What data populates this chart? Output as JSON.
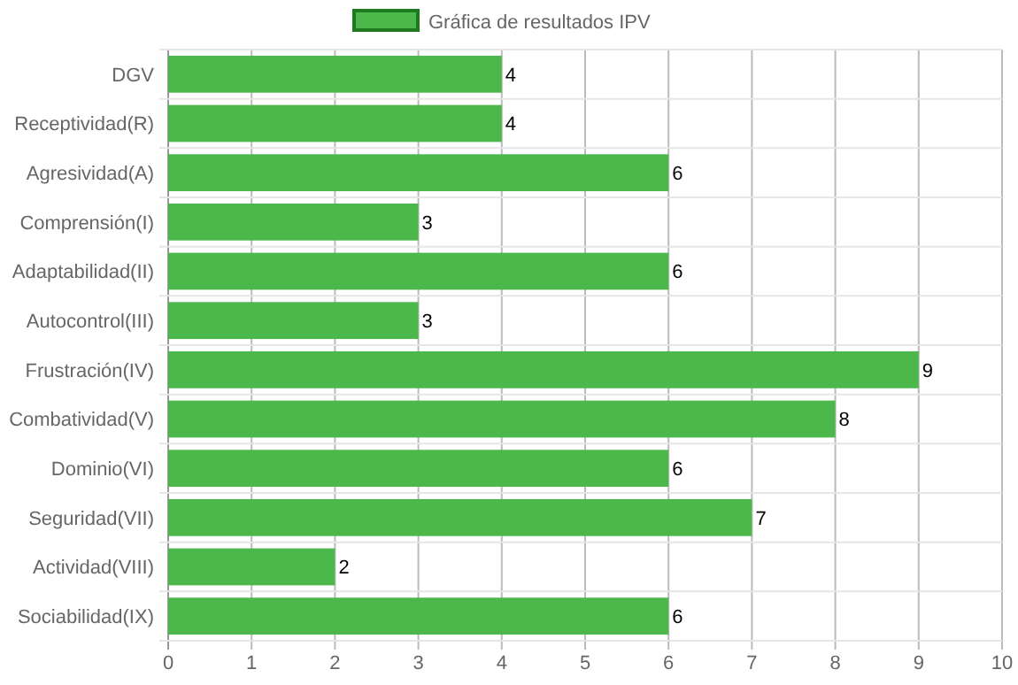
{
  "chart_data": {
    "type": "bar",
    "orientation": "horizontal",
    "categories": [
      "DGV",
      "Receptividad(R)",
      "Agresividad(A)",
      "Comprensión(I)",
      "Adaptabilidad(II)",
      "Autocontrol(III)",
      "Frustración(IV)",
      "Combatividad(V)",
      "Dominio(VI)",
      "Seguridad(VII)",
      "Actividad(VIII)",
      "Sociabilidad(IX)"
    ],
    "series": [
      {
        "name": "Gráfica de resultados IPV",
        "color": "#4cb84c",
        "values": [
          4,
          4,
          6,
          3,
          6,
          3,
          9,
          8,
          6,
          7,
          2,
          6
        ]
      }
    ],
    "xlim": [
      0,
      10
    ],
    "xticks": [
      0,
      1,
      2,
      3,
      4,
      5,
      6,
      7,
      8,
      9,
      10
    ],
    "grid": true,
    "legend": "top",
    "data_labels": true
  }
}
